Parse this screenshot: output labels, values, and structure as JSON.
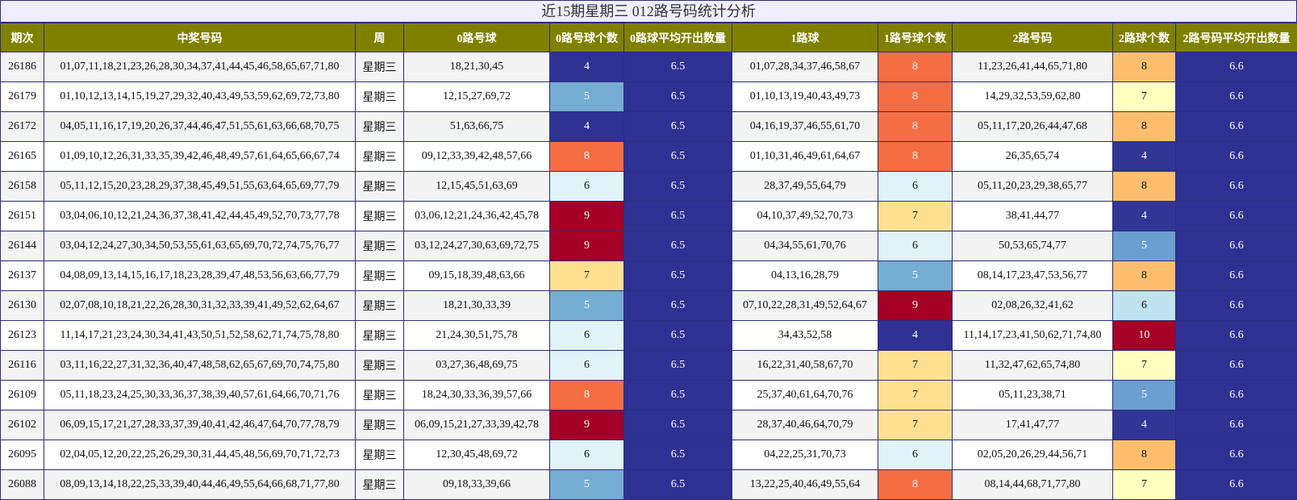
{
  "title": "近15期星期三 012路号码统计分析",
  "headers": [
    "期次",
    "中奖号码",
    "周",
    "0路号球",
    "0路号球个数",
    "0路球平均开出数量",
    "1路球",
    "1路号球个数",
    "2路号码",
    "2路球个数",
    "2路号码平均开出数量"
  ],
  "rows": [
    {
      "issue": "26186",
      "numbers": "01,07,11,18,21,23,26,28,30,34,37,41,44,45,46,58,65,67,71,80",
      "week": "星期三",
      "r0": "18,21,30,45",
      "c0": "4",
      "a0": "6.5",
      "r1": "01,07,28,34,37,46,58,67",
      "c1": "8",
      "r2": "11,23,26,41,44,65,71,80",
      "c2": "8",
      "a2": "6.6"
    },
    {
      "issue": "26179",
      "numbers": "01,10,12,13,14,15,19,27,29,32,40,43,49,53,59,62,69,72,73,80",
      "week": "星期三",
      "r0": "12,15,27,69,72",
      "c0": "5",
      "a0": "6.5",
      "r1": "01,10,13,19,40,43,49,73",
      "c1": "8",
      "r2": "14,29,32,53,59,62,80",
      "c2": "7",
      "a2": "6.6"
    },
    {
      "issue": "26172",
      "numbers": "04,05,11,16,17,19,20,26,37,44,46,47,51,55,61,63,66,68,70,75",
      "week": "星期三",
      "r0": "51,63,66,75",
      "c0": "4",
      "a0": "6.5",
      "r1": "04,16,19,37,46,55,61,70",
      "c1": "8",
      "r2": "05,11,17,20,26,44,47,68",
      "c2": "8",
      "a2": "6.6"
    },
    {
      "issue": "26165",
      "numbers": "01,09,10,12,26,31,33,35,39,42,46,48,49,57,61,64,65,66,67,74",
      "week": "星期三",
      "r0": "09,12,33,39,42,48,57,66",
      "c0": "8",
      "a0": "6.5",
      "r1": "01,10,31,46,49,61,64,67",
      "c1": "8",
      "r2": "26,35,65,74",
      "c2": "4",
      "a2": "6.6"
    },
    {
      "issue": "26158",
      "numbers": "05,11,12,15,20,23,28,29,37,38,45,49,51,55,63,64,65,69,77,79",
      "week": "星期三",
      "r0": "12,15,45,51,63,69",
      "c0": "6",
      "a0": "6.5",
      "r1": "28,37,49,55,64,79",
      "c1": "6",
      "r2": "05,11,20,23,29,38,65,77",
      "c2": "8",
      "a2": "6.6"
    },
    {
      "issue": "26151",
      "numbers": "03,04,06,10,12,21,24,36,37,38,41,42,44,45,49,52,70,73,77,78",
      "week": "星期三",
      "r0": "03,06,12,21,24,36,42,45,78",
      "c0": "9",
      "a0": "6.5",
      "r1": "04,10,37,49,52,70,73",
      "c1": "7",
      "r2": "38,41,44,77",
      "c2": "4",
      "a2": "6.6"
    },
    {
      "issue": "26144",
      "numbers": "03,04,12,24,27,30,34,50,53,55,61,63,65,69,70,72,74,75,76,77",
      "week": "星期三",
      "r0": "03,12,24,27,30,63,69,72,75",
      "c0": "9",
      "a0": "6.5",
      "r1": "04,34,55,61,70,76",
      "c1": "6",
      "r2": "50,53,65,74,77",
      "c2": "5",
      "a2": "6.6"
    },
    {
      "issue": "26137",
      "numbers": "04,08,09,13,14,15,16,17,18,23,28,39,47,48,53,56,63,66,77,79",
      "week": "星期三",
      "r0": "09,15,18,39,48,63,66",
      "c0": "7",
      "a0": "6.5",
      "r1": "04,13,16,28,79",
      "c1": "5",
      "r2": "08,14,17,23,47,53,56,77",
      "c2": "8",
      "a2": "6.6"
    },
    {
      "issue": "26130",
      "numbers": "02,07,08,10,18,21,22,26,28,30,31,32,33,39,41,49,52,62,64,67",
      "week": "星期三",
      "r0": "18,21,30,33,39",
      "c0": "5",
      "a0": "6.5",
      "r1": "07,10,22,28,31,49,52,64,67",
      "c1": "9",
      "r2": "02,08,26,32,41,62",
      "c2": "6",
      "a2": "6.6"
    },
    {
      "issue": "26123",
      "numbers": "11,14,17,21,23,24,30,34,41,43,50,51,52,58,62,71,74,75,78,80",
      "week": "星期三",
      "r0": "21,24,30,51,75,78",
      "c0": "6",
      "a0": "6.5",
      "r1": "34,43,52,58",
      "c1": "4",
      "r2": "11,14,17,23,41,50,62,71,74,80",
      "c2": "10",
      "a2": "6.6"
    },
    {
      "issue": "26116",
      "numbers": "03,11,16,22,27,31,32,36,40,47,48,58,62,65,67,69,70,74,75,80",
      "week": "星期三",
      "r0": "03,27,36,48,69,75",
      "c0": "6",
      "a0": "6.5",
      "r1": "16,22,31,40,58,67,70",
      "c1": "7",
      "r2": "11,32,47,62,65,74,80",
      "c2": "7",
      "a2": "6.6"
    },
    {
      "issue": "26109",
      "numbers": "05,11,18,23,24,25,30,33,36,37,38,39,40,57,61,64,66,70,71,76",
      "week": "星期三",
      "r0": "18,24,30,33,36,39,57,66",
      "c0": "8",
      "a0": "6.5",
      "r1": "25,37,40,61,64,70,76",
      "c1": "7",
      "r2": "05,11,23,38,71",
      "c2": "5",
      "a2": "6.6"
    },
    {
      "issue": "26102",
      "numbers": "06,09,15,17,21,27,28,33,37,39,40,41,42,46,47,64,70,77,78,79",
      "week": "星期三",
      "r0": "06,09,15,21,27,33,39,42,78",
      "c0": "9",
      "a0": "6.5",
      "r1": "28,37,40,46,64,70,79",
      "c1": "7",
      "r2": "17,41,47,77",
      "c2": "4",
      "a2": "6.6"
    },
    {
      "issue": "26095",
      "numbers": "02,04,05,12,20,22,25,26,29,30,31,44,45,48,56,69,70,71,72,73",
      "week": "星期三",
      "r0": "12,30,45,48,69,72",
      "c0": "6",
      "a0": "6.5",
      "r1": "04,22,25,31,70,73",
      "c1": "6",
      "r2": "02,05,20,26,29,44,56,71",
      "c2": "8",
      "a2": "6.6"
    },
    {
      "issue": "26088",
      "numbers": "08,09,13,14,18,22,25,33,39,40,44,46,49,55,64,66,68,71,77,80",
      "week": "星期三",
      "r0": "09,18,33,39,66",
      "c0": "5",
      "a0": "6.5",
      "r1": "13,22,25,40,46,49,55,64",
      "c1": "8",
      "r2": "08,14,44,68,71,77,80",
      "c2": "7",
      "a2": "6.6"
    }
  ]
}
